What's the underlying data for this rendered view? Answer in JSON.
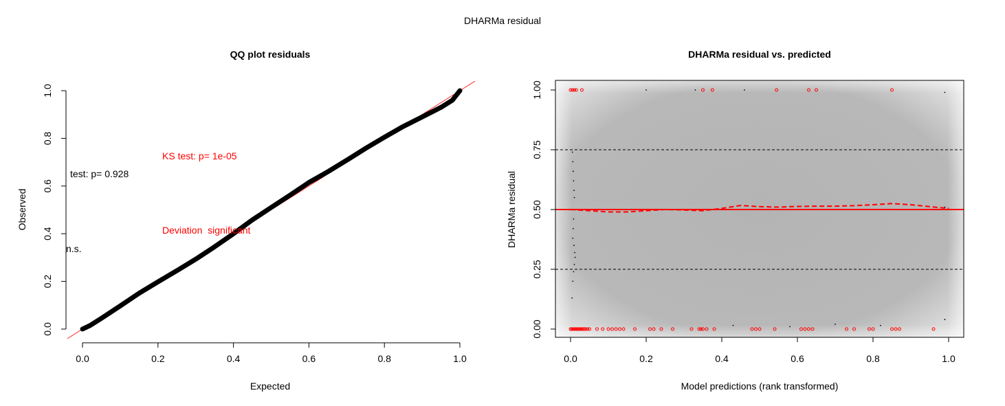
{
  "page": {
    "title": "DHARMa residual"
  },
  "colors": {
    "red": "#ff0000",
    "black": "#000000",
    "grid_dash": "#000000"
  },
  "chart_data": [
    {
      "type": "scatter",
      "title": "QQ plot residuals",
      "xlabel": "Expected",
      "ylabel": "Observed",
      "xlim": [
        0,
        1
      ],
      "ylim": [
        0,
        1
      ],
      "x_ticks": [
        "0.0",
        "0.2",
        "0.4",
        "0.6",
        "0.8",
        "1.0"
      ],
      "y_ticks": [
        "0.0",
        "0.2",
        "0.4",
        "0.6",
        "0.8",
        "1.0"
      ],
      "annotations": {
        "ks_test": "KS test: p= 1e-05",
        "ks_deviation": "Deviation  significant",
        "dispersion_test": "test: p= 0.928",
        "dispersion_result": "n.s."
      },
      "series": [
        {
          "values": [
            [
              0.0,
              0.0
            ],
            [
              0.02,
              0.015
            ],
            [
              0.05,
              0.045
            ],
            [
              0.1,
              0.097
            ],
            [
              0.15,
              0.15
            ],
            [
              0.2,
              0.198
            ],
            [
              0.25,
              0.245
            ],
            [
              0.3,
              0.293
            ],
            [
              0.35,
              0.345
            ],
            [
              0.4,
              0.4
            ],
            [
              0.45,
              0.458
            ],
            [
              0.5,
              0.51
            ],
            [
              0.55,
              0.562
            ],
            [
              0.6,
              0.615
            ],
            [
              0.65,
              0.66
            ],
            [
              0.7,
              0.708
            ],
            [
              0.75,
              0.758
            ],
            [
              0.8,
              0.805
            ],
            [
              0.85,
              0.85
            ],
            [
              0.9,
              0.89
            ],
            [
              0.95,
              0.93
            ],
            [
              0.98,
              0.96
            ],
            [
              1.0,
              1.0
            ]
          ]
        }
      ],
      "reference_line": {
        "slope": 1,
        "intercept": 0,
        "color": "#ff0000"
      }
    },
    {
      "type": "scatter",
      "title": "DHARMa residual vs. predicted",
      "xlabel": "Model predictions (rank transformed)",
      "ylabel": "DHARMa residual",
      "xlim": [
        0,
        1
      ],
      "ylim": [
        0,
        1
      ],
      "x_ticks": [
        "0.0",
        "0.2",
        "0.4",
        "0.6",
        "0.8",
        "1.0"
      ],
      "y_ticks": [
        "0.00",
        "0.25",
        "0.50",
        "0.75",
        "1.00"
      ],
      "hlines": {
        "dashed": [
          0.25,
          0.75
        ],
        "solid": [
          0.5
        ]
      },
      "outliers_top_x": [
        0.0,
        0.005,
        0.01,
        0.015,
        0.03,
        0.35,
        0.375,
        0.545,
        0.63,
        0.65,
        0.85
      ],
      "outliers_bottom_x": [
        0.0,
        0.003,
        0.006,
        0.009,
        0.012,
        0.015,
        0.018,
        0.021,
        0.024,
        0.027,
        0.03,
        0.033,
        0.036,
        0.04,
        0.045,
        0.05,
        0.07,
        0.085,
        0.1,
        0.11,
        0.12,
        0.13,
        0.14,
        0.17,
        0.21,
        0.22,
        0.24,
        0.27,
        0.32,
        0.34,
        0.345,
        0.35,
        0.36,
        0.38,
        0.48,
        0.49,
        0.5,
        0.54,
        0.61,
        0.62,
        0.63,
        0.64,
        0.73,
        0.75,
        0.79,
        0.8,
        0.85,
        0.86,
        0.87,
        0.96
      ],
      "black_points": [
        [
          0.005,
          0.74
        ],
        [
          0.006,
          0.7
        ],
        [
          0.007,
          0.66
        ],
        [
          0.008,
          0.62
        ],
        [
          0.009,
          0.58
        ],
        [
          0.01,
          0.55
        ],
        [
          0.008,
          0.46
        ],
        [
          0.007,
          0.42
        ],
        [
          0.006,
          0.38
        ],
        [
          0.009,
          0.35
        ],
        [
          0.011,
          0.32
        ],
        [
          0.012,
          0.3
        ],
        [
          0.01,
          0.27
        ],
        [
          0.008,
          0.24
        ],
        [
          0.006,
          0.2
        ],
        [
          0.004,
          0.13
        ],
        [
          0.2,
          1.0
        ],
        [
          0.33,
          1.0
        ],
        [
          0.46,
          1.0
        ],
        [
          0.99,
          0.99
        ],
        [
          0.99,
          0.51
        ],
        [
          0.43,
          0.015
        ],
        [
          0.58,
          0.01
        ],
        [
          0.7,
          0.02
        ],
        [
          0.82,
          0.015
        ],
        [
          0.99,
          0.04
        ]
      ],
      "quantile_lines": [
        {
          "quantile": 0.5,
          "points": [
            [
              0.0,
              0.5
            ],
            [
              0.05,
              0.495
            ],
            [
              0.1,
              0.49
            ],
            [
              0.15,
              0.49
            ],
            [
              0.2,
              0.495
            ],
            [
              0.25,
              0.5
            ],
            [
              0.3,
              0.498
            ],
            [
              0.35,
              0.495
            ],
            [
              0.4,
              0.505
            ],
            [
              0.45,
              0.517
            ],
            [
              0.5,
              0.512
            ],
            [
              0.55,
              0.51
            ],
            [
              0.6,
              0.513
            ],
            [
              0.65,
              0.514
            ],
            [
              0.7,
              0.514
            ],
            [
              0.75,
              0.516
            ],
            [
              0.8,
              0.52
            ],
            [
              0.85,
              0.525
            ],
            [
              0.9,
              0.52
            ],
            [
              0.95,
              0.512
            ],
            [
              1.0,
              0.505
            ]
          ]
        }
      ]
    }
  ]
}
